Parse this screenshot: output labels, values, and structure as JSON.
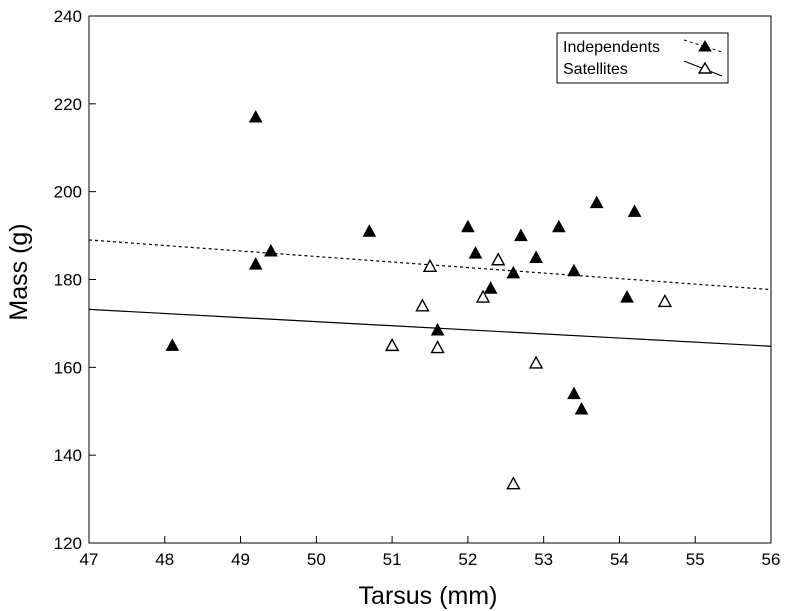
{
  "chart_data": {
    "type": "scatter",
    "title": "",
    "xlabel": "Tarsus (mm)",
    "ylabel": "Mass (g)",
    "xlim": [
      47,
      56
    ],
    "ylim": [
      120,
      240
    ],
    "xticks": [
      47,
      48,
      49,
      50,
      51,
      52,
      53,
      54,
      55,
      56
    ],
    "yticks": [
      120,
      140,
      160,
      180,
      200,
      220,
      240
    ],
    "grid": false,
    "legend_position": "top-right",
    "series": [
      {
        "name": "Independents",
        "marker": "filled-triangle",
        "color": "#000000",
        "points": [
          {
            "x": 48.1,
            "y": 165
          },
          {
            "x": 49.2,
            "y": 217
          },
          {
            "x": 49.2,
            "y": 183.5
          },
          {
            "x": 49.4,
            "y": 186.5
          },
          {
            "x": 50.7,
            "y": 191
          },
          {
            "x": 51.6,
            "y": 168.5
          },
          {
            "x": 52.0,
            "y": 192
          },
          {
            "x": 52.1,
            "y": 186
          },
          {
            "x": 52.3,
            "y": 178
          },
          {
            "x": 52.6,
            "y": 181.5
          },
          {
            "x": 52.7,
            "y": 190
          },
          {
            "x": 52.9,
            "y": 185
          },
          {
            "x": 53.2,
            "y": 192
          },
          {
            "x": 53.4,
            "y": 182
          },
          {
            "x": 53.4,
            "y": 154
          },
          {
            "x": 53.5,
            "y": 150.5
          },
          {
            "x": 53.7,
            "y": 197.5
          },
          {
            "x": 54.1,
            "y": 176
          },
          {
            "x": 54.2,
            "y": 195.5
          }
        ],
        "fit": {
          "style": "dashed",
          "x": [
            47,
            56
          ],
          "y": [
            189,
            177.7
          ]
        }
      },
      {
        "name": "Satellites",
        "marker": "open-triangle",
        "color": "#000000",
        "points": [
          {
            "x": 51.0,
            "y": 165
          },
          {
            "x": 51.4,
            "y": 174
          },
          {
            "x": 51.5,
            "y": 183
          },
          {
            "x": 51.6,
            "y": 164.5
          },
          {
            "x": 52.2,
            "y": 176
          },
          {
            "x": 52.4,
            "y": 184.5
          },
          {
            "x": 52.6,
            "y": 133.5
          },
          {
            "x": 52.9,
            "y": 161
          },
          {
            "x": 54.6,
            "y": 175
          }
        ],
        "fit": {
          "style": "solid",
          "x": [
            47,
            56
          ],
          "y": [
            173.2,
            164.8
          ]
        }
      }
    ]
  }
}
